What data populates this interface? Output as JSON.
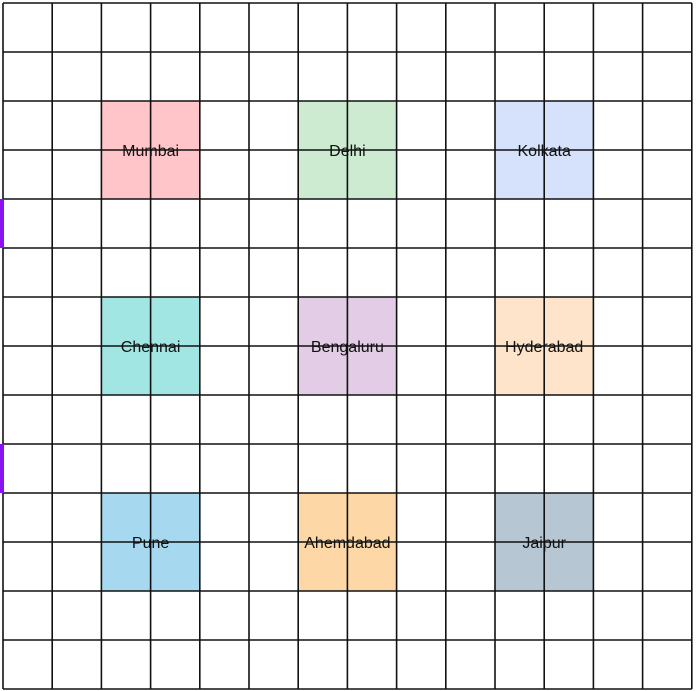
{
  "grid": {
    "rows": 14,
    "cols": 14,
    "line_color": "#111111"
  },
  "cities": [
    {
      "name": "Mumbai",
      "row": 2,
      "col": 2,
      "color": "#ffc5c9"
    },
    {
      "name": "Delhi",
      "row": 2,
      "col": 6,
      "color": "#cdebd1"
    },
    {
      "name": "Kolkata",
      "row": 2,
      "col": 10,
      "color": "#d6e2fb"
    },
    {
      "name": "Chennai",
      "row": 6,
      "col": 2,
      "color": "#a2e6e4"
    },
    {
      "name": "Bengaluru",
      "row": 6,
      "col": 6,
      "color": "#e2cce6"
    },
    {
      "name": "Hyderabad",
      "row": 6,
      "col": 10,
      "color": "#fde4cb"
    },
    {
      "name": "Pune",
      "row": 10,
      "col": 2,
      "color": "#a6d9f0"
    },
    {
      "name": "Ahemdabad",
      "row": 10,
      "col": 6,
      "color": "#fdd7a5"
    },
    {
      "name": "Jaipur",
      "row": 10,
      "col": 10,
      "color": "#b7c6d3"
    }
  ],
  "markers": {
    "color": "#8a12f2",
    "rows": [
      4,
      9
    ]
  }
}
